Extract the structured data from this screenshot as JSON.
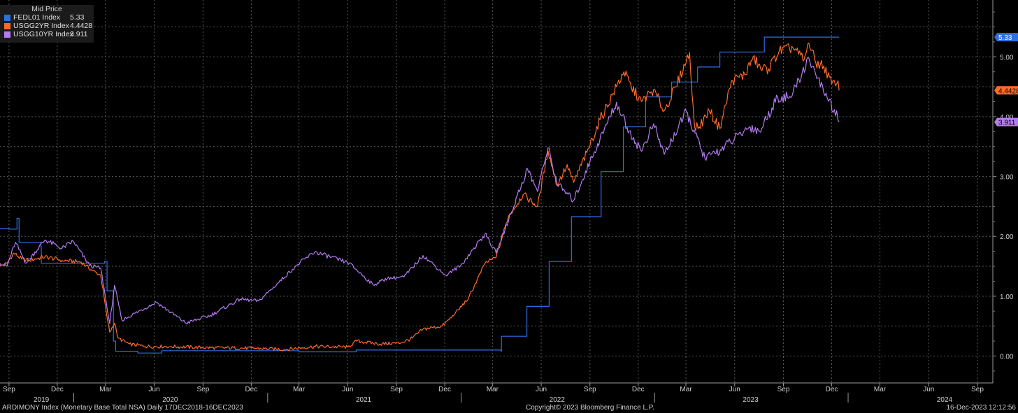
{
  "legend": {
    "title": "Mid Price",
    "items": [
      {
        "name": "FEDL01 Index",
        "value": "5.33",
        "color": "#2f6fe0"
      },
      {
        "name": "USGG2YR Index",
        "value": "4.4428",
        "color": "#ff6a2b"
      },
      {
        "name": "USGG10YR Index",
        "value": "3.911",
        "color": "#b47cf2"
      }
    ]
  },
  "footer": {
    "left": "ARDIMONY Index (Monetary Base Total NSA)  Daily 17DEC2018-16DEC2023",
    "center": "Copyright© 2023 Bloomberg Finance L.P.",
    "right": "16-Dec-2023 12:12:56"
  },
  "chart_data": {
    "type": "line",
    "title": "",
    "xlabel": "",
    "ylabel": "",
    "x_range": [
      "2019-08-15",
      "2024-09-30"
    ],
    "ylim": [
      -0.45,
      5.95
    ],
    "y_ticks": [
      "0.00",
      "1.00",
      "2.00",
      "3.00",
      "4.00",
      "5.00"
    ],
    "x_month_ticks": [
      {
        "date": "2019-09-01",
        "label": "Sep"
      },
      {
        "date": "2019-12-01",
        "label": "Dec"
      },
      {
        "date": "2020-03-01",
        "label": "Mar"
      },
      {
        "date": "2020-06-01",
        "label": "Jun"
      },
      {
        "date": "2020-09-01",
        "label": "Sep"
      },
      {
        "date": "2020-12-01",
        "label": "Dec"
      },
      {
        "date": "2021-03-01",
        "label": "Mar"
      },
      {
        "date": "2021-06-01",
        "label": "Jun"
      },
      {
        "date": "2021-09-01",
        "label": "Sep"
      },
      {
        "date": "2021-12-01",
        "label": "Dec"
      },
      {
        "date": "2022-03-01",
        "label": "Mar"
      },
      {
        "date": "2022-06-01",
        "label": "Jun"
      },
      {
        "date": "2022-09-01",
        "label": "Sep"
      },
      {
        "date": "2022-12-01",
        "label": "Dec"
      },
      {
        "date": "2023-03-01",
        "label": "Mar"
      },
      {
        "date": "2023-06-01",
        "label": "Jun"
      },
      {
        "date": "2023-09-01",
        "label": "Sep"
      },
      {
        "date": "2023-12-01",
        "label": "Dec"
      },
      {
        "date": "2024-03-01",
        "label": "Mar"
      },
      {
        "date": "2024-06-01",
        "label": "Jun"
      },
      {
        "date": "2024-09-01",
        "label": "Sep"
      }
    ],
    "x_year_labels": [
      {
        "date": "2019-11-01",
        "label": "2019"
      },
      {
        "date": "2020-07-01",
        "label": "2020"
      },
      {
        "date": "2021-07-01",
        "label": "2021"
      },
      {
        "date": "2022-07-01",
        "label": "2022"
      },
      {
        "date": "2023-07-01",
        "label": "2023"
      },
      {
        "date": "2024-07-01",
        "label": "2024"
      }
    ],
    "year_dividers": [
      "2020-01-01",
      "2021-01-01",
      "2022-01-01",
      "2023-01-01",
      "2024-01-01"
    ],
    "grid": true,
    "legend_position": "top-left",
    "series": [
      {
        "name": "FEDL01 Index",
        "color": "#2f6fe0",
        "last_label": "5.33",
        "step": true,
        "points": [
          [
            "2019-08-15",
            2.13
          ],
          [
            "2019-08-31",
            2.12
          ],
          [
            "2019-09-16",
            2.3
          ],
          [
            "2019-09-20",
            1.9
          ],
          [
            "2019-10-31",
            1.83
          ],
          [
            "2019-11-01",
            1.55
          ],
          [
            "2020-02-28",
            1.58
          ],
          [
            "2020-03-04",
            1.09
          ],
          [
            "2020-03-16",
            0.25
          ],
          [
            "2020-03-20",
            0.08
          ],
          [
            "2020-05-01",
            0.05
          ],
          [
            "2020-06-15",
            0.09
          ],
          [
            "2021-03-01",
            0.07
          ],
          [
            "2021-06-17",
            0.1
          ],
          [
            "2022-03-17",
            0.08
          ],
          [
            "2022-03-18",
            0.33
          ],
          [
            "2022-05-05",
            0.83
          ],
          [
            "2022-06-16",
            1.58
          ],
          [
            "2022-07-28",
            2.33
          ],
          [
            "2022-09-22",
            3.08
          ],
          [
            "2022-11-03",
            3.83
          ],
          [
            "2022-12-15",
            4.33
          ],
          [
            "2023-02-02",
            4.58
          ],
          [
            "2023-03-23",
            4.83
          ],
          [
            "2023-05-04",
            5.08
          ],
          [
            "2023-07-27",
            5.33
          ],
          [
            "2023-12-15",
            5.33
          ]
        ]
      },
      {
        "name": "USGG2YR Index",
        "color": "#ff6a2b",
        "last_label": "4.4428",
        "points": [
          [
            "2019-08-15",
            1.5
          ],
          [
            "2019-08-28",
            1.55
          ],
          [
            "2019-09-10",
            1.72
          ],
          [
            "2019-09-25",
            1.62
          ],
          [
            "2019-10-10",
            1.6
          ],
          [
            "2019-11-08",
            1.66
          ],
          [
            "2019-12-10",
            1.6
          ],
          [
            "2020-01-15",
            1.57
          ],
          [
            "2020-02-05",
            1.43
          ],
          [
            "2020-02-21",
            1.35
          ],
          [
            "2020-03-03",
            0.7
          ],
          [
            "2020-03-09",
            0.4
          ],
          [
            "2020-03-18",
            0.55
          ],
          [
            "2020-03-25",
            0.3
          ],
          [
            "2020-04-15",
            0.2
          ],
          [
            "2020-05-15",
            0.16
          ],
          [
            "2020-07-01",
            0.16
          ],
          [
            "2020-09-01",
            0.14
          ],
          [
            "2020-12-01",
            0.13
          ],
          [
            "2021-02-01",
            0.11
          ],
          [
            "2021-04-01",
            0.16
          ],
          [
            "2021-06-01",
            0.15
          ],
          [
            "2021-06-18",
            0.25
          ],
          [
            "2021-08-01",
            0.2
          ],
          [
            "2021-09-10",
            0.22
          ],
          [
            "2021-10-01",
            0.3
          ],
          [
            "2021-10-21",
            0.45
          ],
          [
            "2021-11-26",
            0.5
          ],
          [
            "2021-12-20",
            0.7
          ],
          [
            "2022-01-15",
            0.97
          ],
          [
            "2022-02-15",
            1.55
          ],
          [
            "2022-03-08",
            1.65
          ],
          [
            "2022-03-31",
            2.33
          ],
          [
            "2022-04-28",
            2.7
          ],
          [
            "2022-05-25",
            2.5
          ],
          [
            "2022-06-14",
            3.43
          ],
          [
            "2022-07-01",
            2.85
          ],
          [
            "2022-07-20",
            3.2
          ],
          [
            "2022-08-01",
            2.9
          ],
          [
            "2022-08-26",
            3.4
          ],
          [
            "2022-09-20",
            3.95
          ],
          [
            "2022-10-21",
            4.5
          ],
          [
            "2022-11-04",
            4.75
          ],
          [
            "2022-11-18",
            4.5
          ],
          [
            "2022-12-07",
            4.25
          ],
          [
            "2022-12-30",
            4.45
          ],
          [
            "2023-01-19",
            4.1
          ],
          [
            "2023-02-10",
            4.5
          ],
          [
            "2023-03-08",
            5.07
          ],
          [
            "2023-03-17",
            3.85
          ],
          [
            "2023-03-24",
            3.8
          ],
          [
            "2023-04-14",
            4.1
          ],
          [
            "2023-05-04",
            3.8
          ],
          [
            "2023-05-26",
            4.6
          ],
          [
            "2023-06-20",
            4.7
          ],
          [
            "2023-07-06",
            5.0
          ],
          [
            "2023-07-20",
            4.8
          ],
          [
            "2023-08-04",
            4.8
          ],
          [
            "2023-08-24",
            5.1
          ],
          [
            "2023-09-19",
            5.15
          ],
          [
            "2023-10-10",
            4.95
          ],
          [
            "2023-10-19",
            5.23
          ],
          [
            "2023-11-01",
            4.9
          ],
          [
            "2023-11-16",
            4.85
          ],
          [
            "2023-12-01",
            4.55
          ],
          [
            "2023-12-06",
            4.6
          ],
          [
            "2023-12-13",
            4.6
          ],
          [
            "2023-12-15",
            4.44
          ]
        ]
      },
      {
        "name": "USGG10YR Index",
        "color": "#b47cf2",
        "last_label": "3.911",
        "points": [
          [
            "2019-08-15",
            1.55
          ],
          [
            "2019-08-28",
            1.5
          ],
          [
            "2019-09-13",
            1.9
          ],
          [
            "2019-10-03",
            1.55
          ],
          [
            "2019-11-08",
            1.94
          ],
          [
            "2019-12-10",
            1.8
          ],
          [
            "2019-12-31",
            1.92
          ],
          [
            "2020-01-31",
            1.51
          ],
          [
            "2020-02-21",
            1.47
          ],
          [
            "2020-03-09",
            0.54
          ],
          [
            "2020-03-18",
            1.18
          ],
          [
            "2020-04-01",
            0.6
          ],
          [
            "2020-06-05",
            0.9
          ],
          [
            "2020-07-31",
            0.55
          ],
          [
            "2020-09-15",
            0.68
          ],
          [
            "2020-11-10",
            0.95
          ],
          [
            "2020-12-15",
            0.92
          ],
          [
            "2021-01-12",
            1.15
          ],
          [
            "2021-02-25",
            1.52
          ],
          [
            "2021-03-31",
            1.74
          ],
          [
            "2021-06-04",
            1.55
          ],
          [
            "2021-07-19",
            1.19
          ],
          [
            "2021-08-15",
            1.3
          ],
          [
            "2021-09-15",
            1.32
          ],
          [
            "2021-10-21",
            1.68
          ],
          [
            "2021-12-03",
            1.35
          ],
          [
            "2021-12-31",
            1.51
          ],
          [
            "2022-02-15",
            2.04
          ],
          [
            "2022-03-08",
            1.72
          ],
          [
            "2022-05-06",
            3.13
          ],
          [
            "2022-05-25",
            2.75
          ],
          [
            "2022-06-14",
            3.48
          ],
          [
            "2022-07-01",
            2.88
          ],
          [
            "2022-08-01",
            2.6
          ],
          [
            "2022-09-01",
            3.25
          ],
          [
            "2022-10-21",
            4.24
          ],
          [
            "2022-11-10",
            3.82
          ],
          [
            "2022-12-07",
            3.42
          ],
          [
            "2022-12-30",
            3.88
          ],
          [
            "2023-01-19",
            3.37
          ],
          [
            "2023-03-02",
            4.08
          ],
          [
            "2023-04-06",
            3.3
          ],
          [
            "2023-05-05",
            3.45
          ],
          [
            "2023-06-30",
            3.83
          ],
          [
            "2023-07-18",
            3.75
          ],
          [
            "2023-08-21",
            4.33
          ],
          [
            "2023-09-15",
            4.32
          ],
          [
            "2023-10-19",
            4.98
          ],
          [
            "2023-11-01",
            4.7
          ],
          [
            "2023-11-16",
            4.4
          ],
          [
            "2023-12-06",
            4.12
          ],
          [
            "2023-12-15",
            3.91
          ]
        ]
      }
    ]
  }
}
